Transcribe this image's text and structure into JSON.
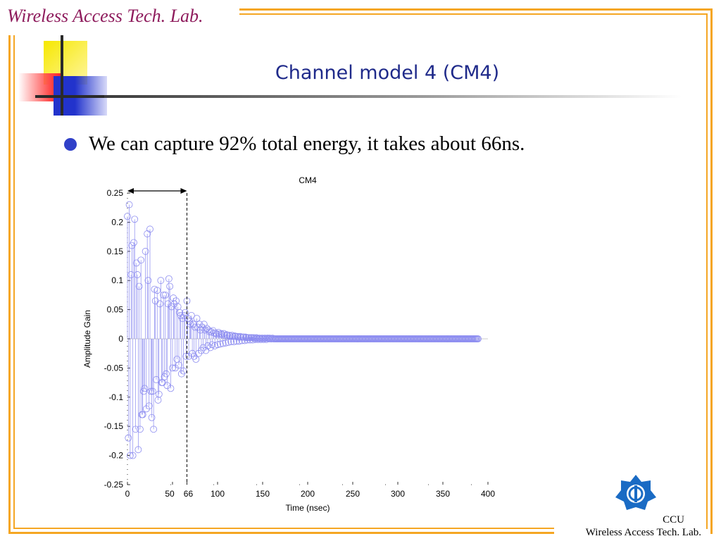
{
  "header": {
    "lab_name": "Wireless Access Tech. Lab."
  },
  "slide": {
    "title": "Channel model 4 (CM4)",
    "bullet": "We can capture 92% total energy, it takes about 66ns."
  },
  "footer": {
    "org": "CCU",
    "lab": "Wireless Access Tech. Lab."
  },
  "colors": {
    "border": "#f5a623",
    "title": "#1f2a8a",
    "lab_name": "#8e1b5c",
    "stem": "#8c8cf0"
  },
  "chart_data": {
    "type": "stem",
    "title": "CM4",
    "xlabel": "Time (nsec)",
    "ylabel": "Amplitude Gain",
    "xlim": [
      0,
      400
    ],
    "ylim": [
      -0.25,
      0.25
    ],
    "xticks": [
      0,
      50,
      66,
      100,
      150,
      200,
      250,
      300,
      350,
      400
    ],
    "yticks": [
      0.25,
      0.2,
      0.15,
      0.1,
      0.05,
      0,
      -0.05,
      -0.1,
      -0.15,
      -0.2,
      -0.25
    ],
    "ytick_labels": [
      "0.25",
      "0.2",
      "0.15",
      "0.1",
      "0.05",
      "0",
      "-0.05",
      "-0.1",
      "-0.15",
      "-0.2",
      "-0.25"
    ],
    "marker_line": {
      "x": 66,
      "arrow_from": 0,
      "arrow_to": 66
    },
    "points": [
      [
        0,
        0.21
      ],
      [
        1,
        -0.17
      ],
      [
        2,
        0.23
      ],
      [
        3,
        -0.2
      ],
      [
        4,
        0.11
      ],
      [
        5,
        0.16
      ],
      [
        6,
        -0.2
      ],
      [
        7,
        0.165
      ],
      [
        8,
        0.205
      ],
      [
        9,
        -0.155
      ],
      [
        10,
        0.13
      ],
      [
        11,
        0.11
      ],
      [
        12,
        -0.19
      ],
      [
        13,
        0.09
      ],
      [
        14,
        -0.155
      ],
      [
        15,
        0.135
      ],
      [
        16,
        -0.13
      ],
      [
        17,
        -0.13
      ],
      [
        18,
        -0.09
      ],
      [
        19,
        -0.085
      ],
      [
        20,
        0.15
      ],
      [
        21,
        -0.12
      ],
      [
        22,
        0.18
      ],
      [
        23,
        0.1
      ],
      [
        24,
        -0.115
      ],
      [
        25,
        0.188
      ],
      [
        26,
        -0.09
      ],
      [
        27,
        -0.135
      ],
      [
        28,
        -0.09
      ],
      [
        29,
        -0.155
      ],
      [
        30,
        0.085
      ],
      [
        31,
        0.065
      ],
      [
        32,
        -0.07
      ],
      [
        33,
        0.083
      ],
      [
        34,
        -0.105
      ],
      [
        35,
        -0.095
      ],
      [
        36,
        0.06
      ],
      [
        37,
        0.1
      ],
      [
        38,
        -0.075
      ],
      [
        39,
        -0.075
      ],
      [
        40,
        0.075
      ],
      [
        41,
        -0.065
      ],
      [
        42,
        0.075
      ],
      [
        43,
        -0.06
      ],
      [
        44,
        -0.08
      ],
      [
        45,
        0.06
      ],
      [
        46,
        0.103
      ],
      [
        47,
        0.09
      ],
      [
        48,
        -0.085
      ],
      [
        49,
        0.055
      ],
      [
        50,
        -0.05
      ],
      [
        51,
        0.07
      ],
      [
        52,
        0.06
      ],
      [
        53,
        -0.05
      ],
      [
        54,
        0.065
      ],
      [
        55,
        -0.035
      ],
      [
        56,
        0.055
      ],
      [
        57,
        -0.045
      ],
      [
        58,
        0.045
      ],
      [
        59,
        0.04
      ],
      [
        60,
        -0.06
      ],
      [
        61,
        0.035
      ],
      [
        62,
        -0.055
      ],
      [
        63,
        0.04
      ],
      [
        64,
        0.045
      ],
      [
        65,
        -0.03
      ],
      [
        66,
        0.065
      ],
      [
        67,
        0.035
      ],
      [
        68,
        -0.03
      ],
      [
        69,
        0.03
      ],
      [
        70,
        0.025
      ],
      [
        71,
        0.04
      ],
      [
        72,
        -0.025
      ],
      [
        73,
        0.025
      ],
      [
        74,
        -0.03
      ],
      [
        75,
        0.02
      ],
      [
        76,
        -0.035
      ],
      [
        77,
        0.035
      ],
      [
        78,
        0.02
      ],
      [
        79,
        -0.025
      ],
      [
        80,
        0.025
      ],
      [
        81,
        0.015
      ],
      [
        82,
        -0.02
      ],
      [
        83,
        0.02
      ],
      [
        84,
        -0.015
      ],
      [
        85,
        0.025
      ],
      [
        86,
        0.015
      ],
      [
        87,
        -0.02
      ],
      [
        88,
        0.018
      ],
      [
        89,
        -0.012
      ],
      [
        90,
        0.015
      ],
      [
        91,
        0.012
      ],
      [
        92,
        -0.015
      ],
      [
        93,
        0.012
      ],
      [
        94,
        -0.01
      ],
      [
        95,
        0.014
      ],
      [
        96,
        0.01
      ],
      [
        97,
        -0.012
      ],
      [
        98,
        0.01
      ],
      [
        99,
        0.008
      ],
      [
        100,
        -0.01
      ],
      [
        101,
        0.011
      ],
      [
        102,
        0.008
      ],
      [
        103,
        -0.009
      ],
      [
        104,
        0.009
      ],
      [
        105,
        0.007
      ],
      [
        106,
        -0.008
      ],
      [
        107,
        0.009
      ],
      [
        108,
        0.006
      ],
      [
        109,
        -0.007
      ],
      [
        110,
        0.007
      ],
      [
        111,
        0.006
      ],
      [
        112,
        -0.006
      ],
      [
        113,
        0.006
      ],
      [
        114,
        0.005
      ],
      [
        115,
        -0.005
      ],
      [
        116,
        0.006
      ],
      [
        117,
        0.004
      ],
      [
        118,
        -0.005
      ],
      [
        119,
        0.005
      ],
      [
        120,
        0.004
      ],
      [
        121,
        -0.004
      ],
      [
        122,
        0.004
      ],
      [
        123,
        0.003
      ],
      [
        124,
        -0.004
      ],
      [
        125,
        0.004
      ],
      [
        126,
        0.003
      ],
      [
        127,
        -0.003
      ],
      [
        128,
        0.003
      ],
      [
        129,
        0.003
      ],
      [
        130,
        -0.003
      ],
      [
        131,
        0.003
      ],
      [
        132,
        0.002
      ],
      [
        133,
        -0.002
      ],
      [
        134,
        0.002
      ],
      [
        135,
        0.002
      ],
      [
        136,
        -0.002
      ],
      [
        137,
        0.002
      ],
      [
        138,
        0.002
      ],
      [
        139,
        -0.002
      ],
      [
        140,
        0.002
      ],
      [
        141,
        0.001
      ],
      [
        142,
        -0.001
      ],
      [
        143,
        0.002
      ],
      [
        144,
        0.001
      ],
      [
        145,
        -0.001
      ],
      [
        146,
        0.001
      ],
      [
        147,
        0.001
      ],
      [
        148,
        -0.001
      ],
      [
        149,
        0.001
      ],
      [
        150,
        0.001
      ],
      [
        151,
        -0.001
      ],
      [
        152,
        0.001
      ],
      [
        153,
        0.001
      ],
      [
        154,
        -0.001
      ],
      [
        155,
        0.001
      ],
      [
        156,
        0.001
      ],
      [
        157,
        0.0
      ],
      [
        158,
        0.001
      ],
      [
        159,
        0.0
      ],
      [
        160,
        0.0
      ],
      [
        161,
        0.001
      ],
      [
        162,
        0.0
      ],
      [
        163,
        0.0
      ],
      [
        164,
        0.0
      ],
      [
        165,
        0.0
      ],
      [
        166,
        0.0
      ],
      [
        167,
        0.0
      ],
      [
        168,
        0.0
      ],
      [
        169,
        0.0
      ],
      [
        170,
        0.0
      ],
      [
        171,
        0.0
      ],
      [
        172,
        0.0
      ],
      [
        173,
        0.0
      ],
      [
        174,
        0.0
      ],
      [
        175,
        0.0
      ],
      [
        176,
        0.0
      ],
      [
        177,
        0.0
      ],
      [
        178,
        0.0
      ],
      [
        179,
        0.0
      ],
      [
        180,
        0.0
      ],
      [
        181,
        0.0
      ],
      [
        182,
        0.0
      ],
      [
        183,
        0.0
      ],
      [
        184,
        0.0
      ],
      [
        185,
        0.0
      ],
      [
        186,
        0.0
      ],
      [
        187,
        0.0
      ],
      [
        188,
        0.0
      ],
      [
        189,
        0.0
      ],
      [
        190,
        0.0
      ],
      [
        191,
        0.0
      ],
      [
        192,
        0.0
      ],
      [
        193,
        0.0
      ],
      [
        194,
        0.0
      ],
      [
        195,
        0.0
      ],
      [
        196,
        0.0
      ],
      [
        197,
        0.0
      ],
      [
        198,
        0.0
      ],
      [
        199,
        0.0
      ],
      [
        200,
        0.0
      ],
      [
        201,
        0.0
      ],
      [
        202,
        0.0
      ],
      [
        203,
        0.0
      ],
      [
        204,
        0.0
      ],
      [
        205,
        0.0
      ],
      [
        206,
        0.0
      ],
      [
        207,
        0.0
      ],
      [
        208,
        0.0
      ],
      [
        209,
        0.0
      ],
      [
        210,
        0.0
      ],
      [
        211,
        0.0
      ],
      [
        212,
        0.0
      ],
      [
        213,
        0.0
      ],
      [
        214,
        0.0
      ],
      [
        215,
        0.0
      ],
      [
        216,
        0.0
      ],
      [
        217,
        0.0
      ],
      [
        218,
        0.0
      ],
      [
        219,
        0.0
      ],
      [
        220,
        0.0
      ],
      [
        221,
        0.0
      ],
      [
        222,
        0.0
      ],
      [
        223,
        0.0
      ],
      [
        224,
        0.0
      ],
      [
        225,
        0.0
      ],
      [
        226,
        0.0
      ],
      [
        227,
        0.0
      ],
      [
        228,
        0.0
      ],
      [
        229,
        0.0
      ],
      [
        230,
        0.0
      ],
      [
        231,
        0.0
      ],
      [
        232,
        0.0
      ],
      [
        233,
        0.0
      ],
      [
        234,
        0.0
      ],
      [
        235,
        0.0
      ],
      [
        236,
        0.0
      ],
      [
        237,
        0.0
      ],
      [
        238,
        0.0
      ],
      [
        239,
        0.0
      ],
      [
        240,
        0.0
      ],
      [
        241,
        0.0
      ],
      [
        242,
        0.0
      ],
      [
        243,
        0.0
      ],
      [
        244,
        0.0
      ],
      [
        245,
        0.0
      ],
      [
        246,
        0.0
      ],
      [
        247,
        0.0
      ],
      [
        248,
        0.0
      ],
      [
        249,
        0.0
      ],
      [
        250,
        0.0
      ],
      [
        251,
        0.0
      ],
      [
        252,
        0.0
      ],
      [
        253,
        0.0
      ],
      [
        254,
        0.0
      ],
      [
        255,
        0.0
      ],
      [
        256,
        0.0
      ],
      [
        257,
        0.0
      ],
      [
        258,
        0.0
      ],
      [
        259,
        0.0
      ],
      [
        260,
        0.0
      ],
      [
        261,
        0.0
      ],
      [
        262,
        0.0
      ],
      [
        263,
        0.0
      ],
      [
        264,
        0.0
      ],
      [
        265,
        0.0
      ],
      [
        266,
        0.0
      ],
      [
        267,
        0.0
      ],
      [
        268,
        0.0
      ],
      [
        269,
        0.0
      ],
      [
        270,
        0.0
      ],
      [
        271,
        0.0
      ],
      [
        272,
        0.0
      ],
      [
        273,
        0.0
      ],
      [
        274,
        0.0
      ],
      [
        275,
        0.0
      ],
      [
        276,
        0.0
      ],
      [
        277,
        0.0
      ],
      [
        278,
        0.0
      ],
      [
        279,
        0.0
      ],
      [
        280,
        0.0
      ],
      [
        281,
        0.0
      ],
      [
        282,
        0.0
      ],
      [
        283,
        0.0
      ],
      [
        284,
        0.0
      ],
      [
        285,
        0.0
      ],
      [
        286,
        0.0
      ],
      [
        287,
        0.0
      ],
      [
        288,
        0.0
      ],
      [
        289,
        0.0
      ],
      [
        290,
        0.0
      ],
      [
        291,
        0.0
      ],
      [
        292,
        0.0
      ],
      [
        293,
        0.0
      ],
      [
        294,
        0.0
      ],
      [
        295,
        0.0
      ],
      [
        296,
        0.0
      ],
      [
        297,
        0.0
      ],
      [
        298,
        0.0
      ],
      [
        299,
        0.0
      ],
      [
        300,
        0.0
      ],
      [
        301,
        0.0
      ],
      [
        302,
        0.0
      ],
      [
        303,
        0.0
      ],
      [
        304,
        0.0
      ],
      [
        305,
        0.0
      ],
      [
        306,
        0.0
      ],
      [
        307,
        0.0
      ],
      [
        308,
        0.0
      ],
      [
        309,
        0.0
      ],
      [
        310,
        0.0
      ],
      [
        311,
        0.0
      ],
      [
        312,
        0.0
      ],
      [
        313,
        0.0
      ],
      [
        314,
        0.0
      ],
      [
        315,
        0.0
      ],
      [
        316,
        0.0
      ],
      [
        317,
        0.0
      ],
      [
        318,
        0.0
      ],
      [
        319,
        0.0
      ],
      [
        320,
        0.0
      ],
      [
        321,
        0.0
      ],
      [
        322,
        0.0
      ],
      [
        323,
        0.0
      ],
      [
        324,
        0.0
      ],
      [
        325,
        0.0
      ],
      [
        326,
        0.0
      ],
      [
        327,
        0.0
      ],
      [
        328,
        0.0
      ],
      [
        329,
        0.0
      ],
      [
        330,
        0.0
      ],
      [
        331,
        0.0
      ],
      [
        332,
        0.0
      ],
      [
        333,
        0.0
      ],
      [
        334,
        0.0
      ],
      [
        335,
        0.0
      ],
      [
        336,
        0.0
      ],
      [
        337,
        0.0
      ],
      [
        338,
        0.0
      ],
      [
        339,
        0.0
      ],
      [
        340,
        0.0
      ],
      [
        341,
        0.0
      ],
      [
        342,
        0.0
      ],
      [
        343,
        0.0
      ],
      [
        344,
        0.0
      ],
      [
        345,
        0.0
      ],
      [
        346,
        0.0
      ],
      [
        347,
        0.0
      ],
      [
        348,
        0.0
      ],
      [
        349,
        0.0
      ],
      [
        350,
        0.0
      ],
      [
        351,
        0.0
      ],
      [
        352,
        0.0
      ],
      [
        353,
        0.0
      ],
      [
        354,
        0.0
      ],
      [
        355,
        0.0
      ],
      [
        356,
        0.0
      ],
      [
        357,
        0.0
      ],
      [
        358,
        0.0
      ],
      [
        359,
        0.0
      ],
      [
        360,
        0.0
      ],
      [
        361,
        0.0
      ],
      [
        362,
        0.0
      ],
      [
        363,
        0.0
      ],
      [
        364,
        0.0
      ],
      [
        365,
        0.0
      ],
      [
        366,
        0.0
      ],
      [
        367,
        0.0
      ],
      [
        368,
        0.0
      ],
      [
        369,
        0.0
      ],
      [
        370,
        0.0
      ],
      [
        371,
        0.0
      ],
      [
        372,
        0.0
      ],
      [
        373,
        0.0
      ],
      [
        374,
        0.0
      ],
      [
        375,
        0.0
      ],
      [
        376,
        0.0
      ],
      [
        377,
        0.0
      ],
      [
        378,
        0.0
      ],
      [
        379,
        0.0
      ],
      [
        380,
        0.0
      ],
      [
        381,
        0.0
      ],
      [
        382,
        0.0
      ],
      [
        383,
        0.0
      ],
      [
        384,
        0.0
      ],
      [
        385,
        0.0
      ],
      [
        386,
        0.0
      ],
      [
        387,
        0.0
      ],
      [
        388,
        0.0
      ],
      [
        389,
        0.0
      ]
    ]
  }
}
